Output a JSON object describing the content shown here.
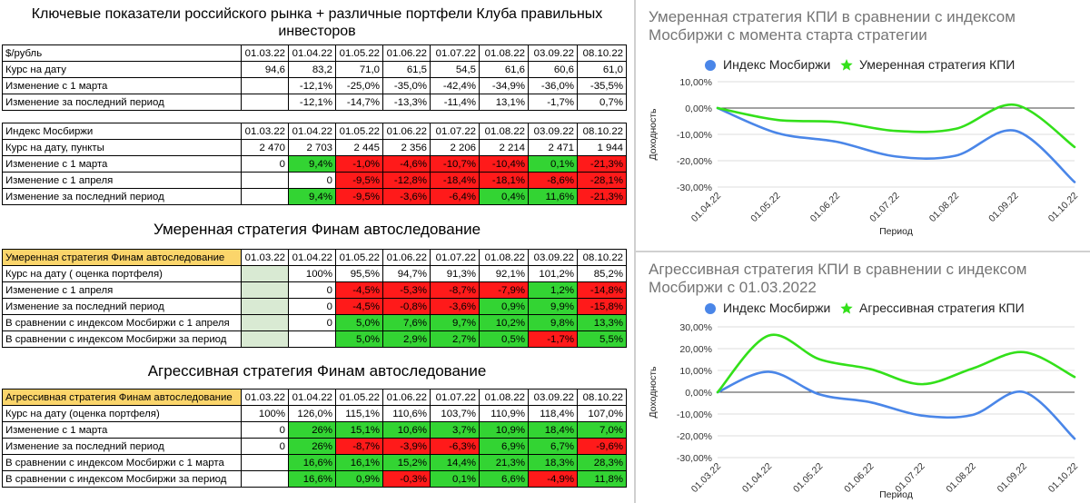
{
  "main_title": "Ключевые показатели российского рынка + различные портфели Клуба правильных инвесторов",
  "dates": [
    "01.03.22",
    "01.04.22",
    "01.05.22",
    "01.06.22",
    "01.07.22",
    "01.08.22",
    "03.09.22",
    "08.10.22"
  ],
  "colors": {
    "green": "#33d433",
    "red": "#ff1a1a",
    "highlight": "#fbd56b",
    "pale_green": "#d9ead3",
    "blue": "#4a86e8",
    "bright_green": "#33e01a"
  },
  "table_usd": {
    "header": "$/рубль",
    "rows": [
      {
        "label": "Курс на дату",
        "cells": [
          "94,6",
          "83,2",
          "71,0",
          "61,5",
          "54,5",
          "61,6",
          "60,6",
          "61,0"
        ],
        "colors": [
          "",
          "",
          "",
          "",
          "",
          "",
          "",
          ""
        ]
      },
      {
        "label": "Изменение с 1 марта",
        "cells": [
          "",
          "-12,1%",
          "-25,0%",
          "-35,0%",
          "-42,4%",
          "-34,9%",
          "-36,0%",
          "-35,5%"
        ],
        "colors": [
          "",
          "",
          "",
          "",
          "",
          "",
          "",
          ""
        ]
      },
      {
        "label": "Изменение за последний период",
        "cells": [
          "",
          "-12,1%",
          "-14,7%",
          "-13,3%",
          "-11,4%",
          "13,1%",
          "-1,7%",
          "0,7%"
        ],
        "colors": [
          "",
          "",
          "",
          "",
          "",
          "",
          "",
          ""
        ]
      }
    ]
  },
  "table_moex": {
    "header": "Индекс Мосбиржи",
    "rows": [
      {
        "label": "Курс на дату, пункты",
        "cells": [
          "2 470",
          "2 703",
          "2 445",
          "2 356",
          "2 206",
          "2 214",
          "2 471",
          "1 944"
        ],
        "colors": [
          "",
          "",
          "",
          "",
          "",
          "",
          "",
          ""
        ]
      },
      {
        "label": "Изменение с 1 марта",
        "cells": [
          "0",
          "9,4%",
          "-1,0%",
          "-4,6%",
          "-10,7%",
          "-10,4%",
          "0,1%",
          "-21,3%"
        ],
        "colors": [
          "",
          "g",
          "r",
          "r",
          "r",
          "r",
          "g",
          "r"
        ]
      },
      {
        "label": "Изменение с 1 апреля",
        "cells": [
          "",
          "0",
          "-9,5%",
          "-12,8%",
          "-18,4%",
          "-18,1%",
          "-8,6%",
          "-28,1%"
        ],
        "colors": [
          "",
          "",
          "r",
          "r",
          "r",
          "r",
          "r",
          "r"
        ]
      },
      {
        "label": "Изменение за последний период",
        "cells": [
          "",
          "9,4%",
          "-9,5%",
          "-3,6%",
          "-6,4%",
          "0,4%",
          "11,6%",
          "-21,3%"
        ],
        "colors": [
          "",
          "g",
          "r",
          "r",
          "r",
          "g",
          "g",
          "r"
        ]
      }
    ]
  },
  "section_moderate": "Умеренная стратегия Финам автоследование",
  "table_moderate": {
    "header": "Умеренная стратегия Финам автоследование",
    "rows": [
      {
        "label": "Курс на дату ( оценка портфеля)",
        "cells": [
          "",
          "100%",
          "95,5%",
          "94,7%",
          "91,3%",
          "92,1%",
          "101,2%",
          "85,2%"
        ],
        "colors": [
          "pg",
          "",
          "",
          "",
          "",
          "",
          "",
          ""
        ]
      },
      {
        "label": "Изменение с 1 апреля",
        "cells": [
          "",
          "0",
          "-4,5%",
          "-5,3%",
          "-8,7%",
          "-7,9%",
          "1,2%",
          "-14,8%"
        ],
        "colors": [
          "pg",
          "",
          "r",
          "r",
          "r",
          "r",
          "g",
          "r"
        ]
      },
      {
        "label": "Изменение за последний период",
        "cells": [
          "",
          "0",
          "-4,5%",
          "-0,8%",
          "-3,6%",
          "0,9%",
          "9,9%",
          "-15,8%"
        ],
        "colors": [
          "pg",
          "",
          "r",
          "r",
          "r",
          "g",
          "g",
          "r"
        ]
      },
      {
        "label": "В сравнении с индексом Мосбиржи с 1 апреля",
        "cells": [
          "",
          "0",
          "5,0%",
          "7,6%",
          "9,7%",
          "10,2%",
          "9,8%",
          "13,3%"
        ],
        "colors": [
          "pg",
          "",
          "g",
          "g",
          "g",
          "g",
          "g",
          "g"
        ]
      },
      {
        "label": "В сравнении с индексом Мосбиржи за период",
        "cells": [
          "",
          "",
          "5,0%",
          "2,9%",
          "2,7%",
          "0,5%",
          "-1,7%",
          "5,5%"
        ],
        "colors": [
          "pg",
          "",
          "g",
          "g",
          "g",
          "g",
          "r",
          "g"
        ]
      }
    ]
  },
  "section_aggressive": "Агрессивная стратегия Финам автоследование",
  "table_aggressive": {
    "header": "Агрессивная стратегия Финам автоследование",
    "rows": [
      {
        "label": "Курс на дату (оценка портфеля)",
        "cells": [
          "100%",
          "126,0%",
          "115,1%",
          "110,6%",
          "103,7%",
          "110,9%",
          "118,4%",
          "107,0%"
        ],
        "colors": [
          "",
          "",
          "",
          "",
          "",
          "",
          "",
          ""
        ]
      },
      {
        "label": "Изменение с 1 марта",
        "cells": [
          "0",
          "26%",
          "15,1%",
          "10,6%",
          "3,7%",
          "10,9%",
          "18,4%",
          "7,0%"
        ],
        "colors": [
          "",
          "g",
          "g",
          "g",
          "g",
          "g",
          "g",
          "g"
        ]
      },
      {
        "label": "Изменение за последний период",
        "cells": [
          "0",
          "26%",
          "-8,7%",
          "-3,9%",
          "-6,3%",
          "6,9%",
          "6,7%",
          "-9,6%"
        ],
        "colors": [
          "",
          "g",
          "r",
          "r",
          "r",
          "g",
          "g",
          "r"
        ]
      },
      {
        "label": "В сравнении с индексом Мосбиржи с 1 марта",
        "cells": [
          "",
          "16,6%",
          "16,1%",
          "15,2%",
          "14,4%",
          "21,3%",
          "18,3%",
          "28,3%"
        ],
        "colors": [
          "",
          "g",
          "g",
          "g",
          "g",
          "g",
          "g",
          "g"
        ]
      },
      {
        "label": "В сравнении с индексом Мосбиржи за период",
        "cells": [
          "",
          "16,6%",
          "0,9%",
          "-0,3%",
          "0,1%",
          "6,6%",
          "-4,9%",
          "11,8%"
        ],
        "colors": [
          "",
          "g",
          "g",
          "r",
          "g",
          "g",
          "r",
          "g"
        ]
      }
    ]
  },
  "chart_data": [
    {
      "type": "line",
      "title": "Умеренная стратегия КПИ в сравнении с индексом Мосбиржи с момента старта стратегии",
      "xlabel": "Период",
      "ylabel": "Доходность",
      "x": [
        "01.04.22",
        "01.05.22",
        "01.06.22",
        "01.07.22",
        "01.08.22",
        "01.09.22",
        "01.10.22"
      ],
      "ylim": [
        -30,
        10
      ],
      "yticks": [
        "10,00%",
        "0,00%",
        "-10,00%",
        "-20,00%",
        "-30,00%"
      ],
      "legend_position": "top",
      "series": [
        {
          "name": "Индекс Мосбиржи",
          "values": [
            0,
            -9.5,
            -12.8,
            -18.4,
            -18.1,
            -8.6,
            -28.1
          ],
          "color": "#4a86e8"
        },
        {
          "name": "Умеренная стратегия КПИ",
          "values": [
            0,
            -4.5,
            -5.3,
            -8.7,
            -7.9,
            1.2,
            -14.8
          ],
          "color": "#33e01a"
        }
      ]
    },
    {
      "type": "line",
      "title": "Агрессивная стратегия КПИ в сравнении с индексом Мосбиржи с 01.03.2022",
      "xlabel": "Период",
      "ylabel": "Доходность",
      "x": [
        "01.03.22",
        "01.04.22",
        "01.05.22",
        "01.06.22",
        "01.07.22",
        "01.08.22",
        "01.09.22",
        "01.10.22"
      ],
      "ylim": [
        -30,
        30
      ],
      "yticks": [
        "30,00%",
        "20,00%",
        "10,00%",
        "0,00%",
        "-10,00%",
        "-20,00%",
        "-30,00%"
      ],
      "legend_position": "top",
      "series": [
        {
          "name": "Индекс Мосбиржи",
          "values": [
            0,
            9.4,
            -1.0,
            -4.6,
            -10.7,
            -10.4,
            0.1,
            -21.3
          ],
          "color": "#4a86e8"
        },
        {
          "name": "Агрессивная стратегия КПИ",
          "values": [
            0,
            26,
            15.1,
            10.6,
            3.7,
            10.9,
            18.4,
            7.0
          ],
          "color": "#33e01a"
        }
      ]
    }
  ]
}
